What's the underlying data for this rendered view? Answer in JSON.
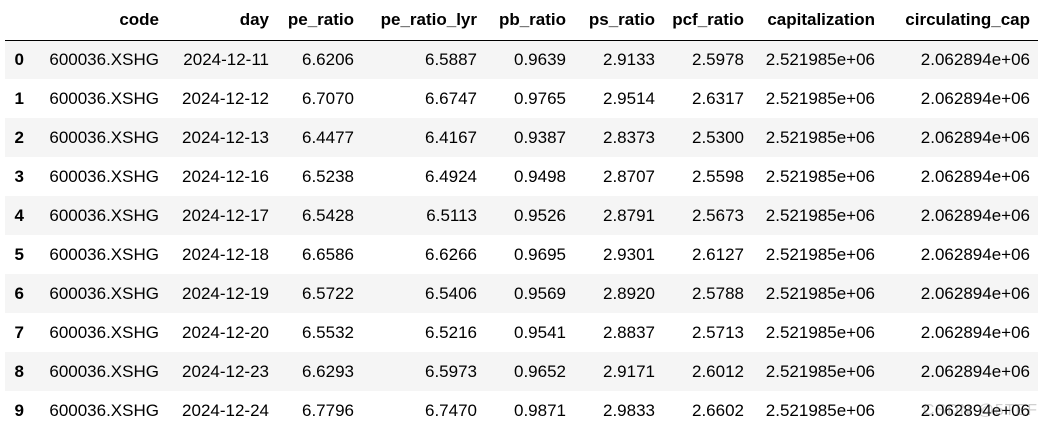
{
  "table": {
    "columns": [
      "code",
      "day",
      "pe_ratio",
      "pe_ratio_lyr",
      "pb_ratio",
      "ps_ratio",
      "pcf_ratio",
      "capitalization",
      "circulating_cap"
    ],
    "rows": [
      {
        "index": "0",
        "cells": [
          "600036.XSHG",
          "2024-12-11",
          "6.6206",
          "6.5887",
          "0.9639",
          "2.9133",
          "2.5978",
          "2.521985e+06",
          "2.062894e+06"
        ]
      },
      {
        "index": "1",
        "cells": [
          "600036.XSHG",
          "2024-12-12",
          "6.7070",
          "6.6747",
          "0.9765",
          "2.9514",
          "2.6317",
          "2.521985e+06",
          "2.062894e+06"
        ]
      },
      {
        "index": "2",
        "cells": [
          "600036.XSHG",
          "2024-12-13",
          "6.4477",
          "6.4167",
          "0.9387",
          "2.8373",
          "2.5300",
          "2.521985e+06",
          "2.062894e+06"
        ]
      },
      {
        "index": "3",
        "cells": [
          "600036.XSHG",
          "2024-12-16",
          "6.5238",
          "6.4924",
          "0.9498",
          "2.8707",
          "2.5598",
          "2.521985e+06",
          "2.062894e+06"
        ]
      },
      {
        "index": "4",
        "cells": [
          "600036.XSHG",
          "2024-12-17",
          "6.5428",
          "6.5113",
          "0.9526",
          "2.8791",
          "2.5673",
          "2.521985e+06",
          "2.062894e+06"
        ]
      },
      {
        "index": "5",
        "cells": [
          "600036.XSHG",
          "2024-12-18",
          "6.6586",
          "6.6266",
          "0.9695",
          "2.9301",
          "2.6127",
          "2.521985e+06",
          "2.062894e+06"
        ]
      },
      {
        "index": "6",
        "cells": [
          "600036.XSHG",
          "2024-12-19",
          "6.5722",
          "6.5406",
          "0.9569",
          "2.8920",
          "2.5788",
          "2.521985e+06",
          "2.062894e+06"
        ]
      },
      {
        "index": "7",
        "cells": [
          "600036.XSHG",
          "2024-12-20",
          "6.5532",
          "6.5216",
          "0.9541",
          "2.8837",
          "2.5713",
          "2.521985e+06",
          "2.062894e+06"
        ]
      },
      {
        "index": "8",
        "cells": [
          "600036.XSHG",
          "2024-12-23",
          "6.6293",
          "6.5973",
          "0.9652",
          "2.9171",
          "2.6012",
          "2.521985e+06",
          "2.062894e+06"
        ]
      },
      {
        "index": "9",
        "cells": [
          "600036.XSHG",
          "2024-12-24",
          "6.7796",
          "6.7470",
          "0.9871",
          "2.9833",
          "2.6602",
          "2.521985e+06",
          "2.062894e+06"
        ]
      }
    ]
  },
  "watermark": "CSDN @5TEF"
}
